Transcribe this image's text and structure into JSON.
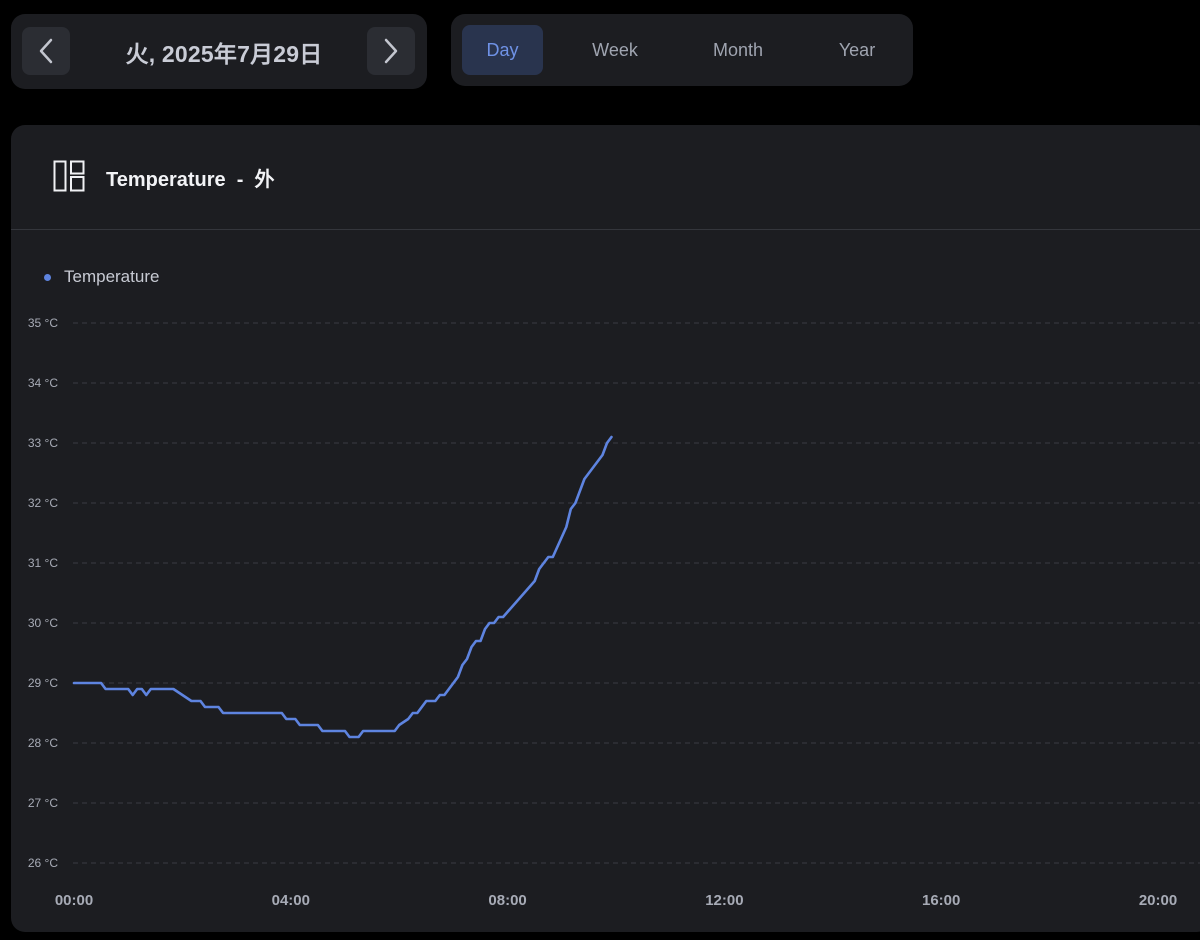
{
  "date_nav": {
    "date_label": "火, 2025年7月29日",
    "prev_icon": "chevron-left-icon",
    "next_icon": "chevron-right-icon"
  },
  "range_tabs": [
    {
      "label": "Day",
      "active": true
    },
    {
      "label": "Week",
      "active": false
    },
    {
      "label": "Month",
      "active": false
    },
    {
      "label": "Year",
      "active": false
    }
  ],
  "card": {
    "icon": "dashboard-layout-icon",
    "title": "Temperature  -  外"
  },
  "colors": {
    "background": "#000000",
    "panel": "#1c1d21",
    "accent": "#5e84e0",
    "active_tab_bg": "#29344e"
  },
  "chart_data": {
    "type": "line",
    "title": "",
    "xlabel": "",
    "ylabel": "",
    "legend": "top-left",
    "grid": true,
    "ylim": [
      26,
      35
    ],
    "xlim": [
      "00:00",
      "20:00"
    ],
    "y_ticks": [
      "26 °C",
      "27 °C",
      "28 °C",
      "29 °C",
      "30 °C",
      "31 °C",
      "32 °C",
      "33 °C",
      "34 °C",
      "35 °C"
    ],
    "x_ticks": [
      "00:00",
      "04:00",
      "08:00",
      "12:00",
      "16:00",
      "20:00"
    ],
    "series": [
      {
        "name": "Temperature",
        "color": "#5e84e0",
        "points": [
          [
            "00:00",
            29.0
          ],
          [
            "00:30",
            29.0
          ],
          [
            "00:35",
            28.9
          ],
          [
            "01:00",
            28.9
          ],
          [
            "01:05",
            28.8
          ],
          [
            "01:10",
            28.9
          ],
          [
            "01:15",
            28.9
          ],
          [
            "01:20",
            28.8
          ],
          [
            "01:25",
            28.9
          ],
          [
            "01:50",
            28.9
          ],
          [
            "02:00",
            28.8
          ],
          [
            "02:10",
            28.7
          ],
          [
            "02:20",
            28.7
          ],
          [
            "02:25",
            28.6
          ],
          [
            "02:40",
            28.6
          ],
          [
            "02:45",
            28.5
          ],
          [
            "03:30",
            28.5
          ],
          [
            "03:50",
            28.5
          ],
          [
            "03:55",
            28.4
          ],
          [
            "04:05",
            28.4
          ],
          [
            "04:10",
            28.3
          ],
          [
            "04:30",
            28.3
          ],
          [
            "04:35",
            28.2
          ],
          [
            "05:00",
            28.2
          ],
          [
            "05:05",
            28.1
          ],
          [
            "05:15",
            28.1
          ],
          [
            "05:20",
            28.2
          ],
          [
            "05:55",
            28.2
          ],
          [
            "06:00",
            28.3
          ],
          [
            "06:10",
            28.4
          ],
          [
            "06:15",
            28.5
          ],
          [
            "06:20",
            28.5
          ],
          [
            "06:30",
            28.7
          ],
          [
            "06:40",
            28.7
          ],
          [
            "06:45",
            28.8
          ],
          [
            "06:50",
            28.8
          ],
          [
            "07:05",
            29.1
          ],
          [
            "07:10",
            29.3
          ],
          [
            "07:15",
            29.4
          ],
          [
            "07:20",
            29.6
          ],
          [
            "07:25",
            29.7
          ],
          [
            "07:30",
            29.7
          ],
          [
            "07:35",
            29.9
          ],
          [
            "07:40",
            30.0
          ],
          [
            "07:45",
            30.0
          ],
          [
            "07:50",
            30.1
          ],
          [
            "07:55",
            30.1
          ],
          [
            "08:30",
            30.7
          ],
          [
            "08:35",
            30.9
          ],
          [
            "08:45",
            31.1
          ],
          [
            "08:50",
            31.1
          ],
          [
            "09:05",
            31.6
          ],
          [
            "09:10",
            31.9
          ],
          [
            "09:15",
            32.0
          ],
          [
            "09:25",
            32.4
          ],
          [
            "09:45",
            32.8
          ],
          [
            "09:50",
            33.0
          ],
          [
            "09:55",
            33.1
          ]
        ]
      }
    ]
  }
}
